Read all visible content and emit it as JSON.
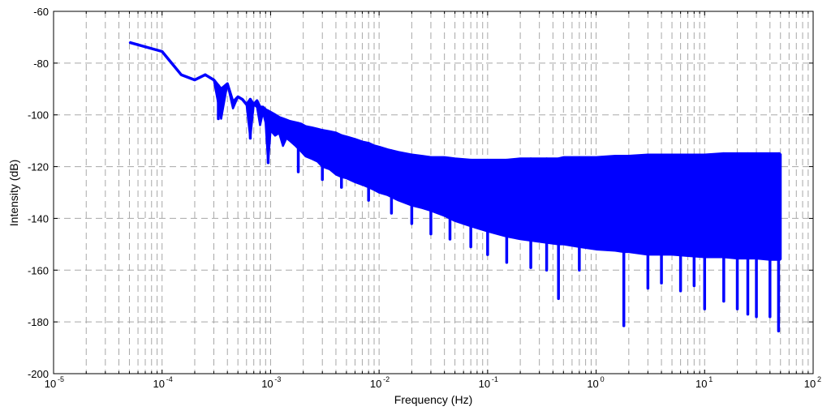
{
  "chart_data": {
    "type": "line",
    "xlabel": "Frequency (Hz)",
    "ylabel": "Intensity (dB)",
    "x_scale": "log",
    "xlim": [
      1e-05,
      100
    ],
    "ylim": [
      -200,
      -60
    ],
    "grid": true,
    "y_ticks": [
      -60,
      -80,
      -100,
      -120,
      -140,
      -160,
      -180,
      -200
    ],
    "x_ticks": [
      {
        "value": 1e-05,
        "base": "10",
        "exp": "-5"
      },
      {
        "value": 0.0001,
        "base": "10",
        "exp": "-4"
      },
      {
        "value": 0.001,
        "base": "10",
        "exp": "-3"
      },
      {
        "value": 0.01,
        "base": "10",
        "exp": "-2"
      },
      {
        "value": 0.1,
        "base": "10",
        "exp": "-1"
      },
      {
        "value": 1,
        "base": "10",
        "exp": "0"
      },
      {
        "value": 10,
        "base": "10",
        "exp": "1"
      },
      {
        "value": 100,
        "base": "10",
        "exp": "2"
      }
    ],
    "series_color": "#0000ff",
    "series": [
      {
        "x": [
          5e-05,
          0.0001,
          0.00015,
          0.0002,
          0.00025,
          0.0003,
          0.00035,
          0.0004,
          0.00045,
          0.0005,
          0.00055,
          0.0006,
          0.00065,
          0.0007,
          0.00075,
          0.0008,
          0.00085,
          0.0009,
          0.00095,
          0.001,
          0.0011,
          0.0012,
          0.0013,
          0.0014,
          0.0015,
          0.0017,
          0.0019,
          0.0021,
          0.0024,
          0.0027,
          0.003,
          0.0035,
          0.004,
          0.0045,
          0.005,
          0.006,
          0.007,
          0.008,
          0.009,
          0.01,
          0.012,
          0.015,
          0.02,
          0.025,
          0.03,
          0.04,
          0.05,
          0.07,
          0.1,
          0.15,
          0.2,
          0.3,
          0.45,
          0.5,
          0.7,
          1,
          1.5,
          1.8,
          2,
          3,
          5,
          7,
          10,
          15,
          20,
          30,
          40,
          48,
          50
        ],
        "upper": [
          -72,
          -75.5,
          -84.5,
          -86.5,
          -84.5,
          -86.5,
          -90,
          -88,
          -95,
          -93,
          -94,
          -96,
          -94,
          -96,
          -94.5,
          -97,
          -97,
          -98,
          -98.5,
          -99,
          -100,
          -101,
          -101.5,
          -102,
          -102.5,
          -103,
          -103.5,
          -104.5,
          -105,
          -105.5,
          -106,
          -106.5,
          -107,
          -108,
          -108.5,
          -109.5,
          -110.5,
          -111,
          -112,
          -112.5,
          -113.5,
          -114.5,
          -115.5,
          -116,
          -116.5,
          -116.5,
          -117,
          -117.5,
          -117.5,
          -117.5,
          -117,
          -117,
          -117,
          -116.5,
          -116.5,
          -116.5,
          -116,
          -116,
          -116,
          -115.5,
          -115.5,
          -115.5,
          -115.5,
          -115,
          -115,
          -115,
          -115,
          -115,
          -115
        ],
        "lower": [
          -72,
          -75.5,
          -84.5,
          -86.5,
          -84.5,
          -86.5,
          -101.5,
          -88,
          -97.5,
          -93,
          -94,
          -96,
          -109,
          -96,
          -97,
          -104,
          -99,
          -103,
          -118.5,
          -106,
          -108,
          -107,
          -112,
          -109,
          -110,
          -112,
          -114,
          -116,
          -117,
          -118,
          -120,
          -121,
          -123,
          -124,
          -124.5,
          -126,
          -127,
          -128,
          -129,
          -130,
          -131,
          -133,
          -135,
          -136,
          -137,
          -139,
          -141,
          -143,
          -145,
          -147,
          -148,
          -149,
          -150,
          -150,
          -151,
          -152,
          -152.5,
          -153,
          -153,
          -154,
          -154,
          -154.5,
          -155,
          -155,
          -155.5,
          -155.5,
          -156,
          -156,
          -156
        ]
      }
    ],
    "spikes": [
      {
        "x": 0.00033,
        "y": -101.5
      },
      {
        "x": 0.00065,
        "y": -109
      },
      {
        "x": 0.00095,
        "y": -118.5
      },
      {
        "x": 0.0018,
        "y": -122
      },
      {
        "x": 0.003,
        "y": -125
      },
      {
        "x": 0.0045,
        "y": -128
      },
      {
        "x": 0.008,
        "y": -133
      },
      {
        "x": 0.013,
        "y": -138
      },
      {
        "x": 0.02,
        "y": -142
      },
      {
        "x": 0.03,
        "y": -146
      },
      {
        "x": 0.045,
        "y": -148
      },
      {
        "x": 0.07,
        "y": -151
      },
      {
        "x": 0.1,
        "y": -154
      },
      {
        "x": 0.15,
        "y": -157
      },
      {
        "x": 0.25,
        "y": -159
      },
      {
        "x": 0.35,
        "y": -160
      },
      {
        "x": 0.45,
        "y": -171
      },
      {
        "x": 0.7,
        "y": -160
      },
      {
        "x": 1.8,
        "y": -181.5
      },
      {
        "x": 3,
        "y": -167
      },
      {
        "x": 4,
        "y": -165
      },
      {
        "x": 6,
        "y": -168
      },
      {
        "x": 8,
        "y": -166
      },
      {
        "x": 10,
        "y": -175
      },
      {
        "x": 15,
        "y": -172
      },
      {
        "x": 20,
        "y": -175
      },
      {
        "x": 25,
        "y": -177
      },
      {
        "x": 30,
        "y": -178
      },
      {
        "x": 40,
        "y": -178
      },
      {
        "x": 48,
        "y": -183.5
      }
    ]
  }
}
